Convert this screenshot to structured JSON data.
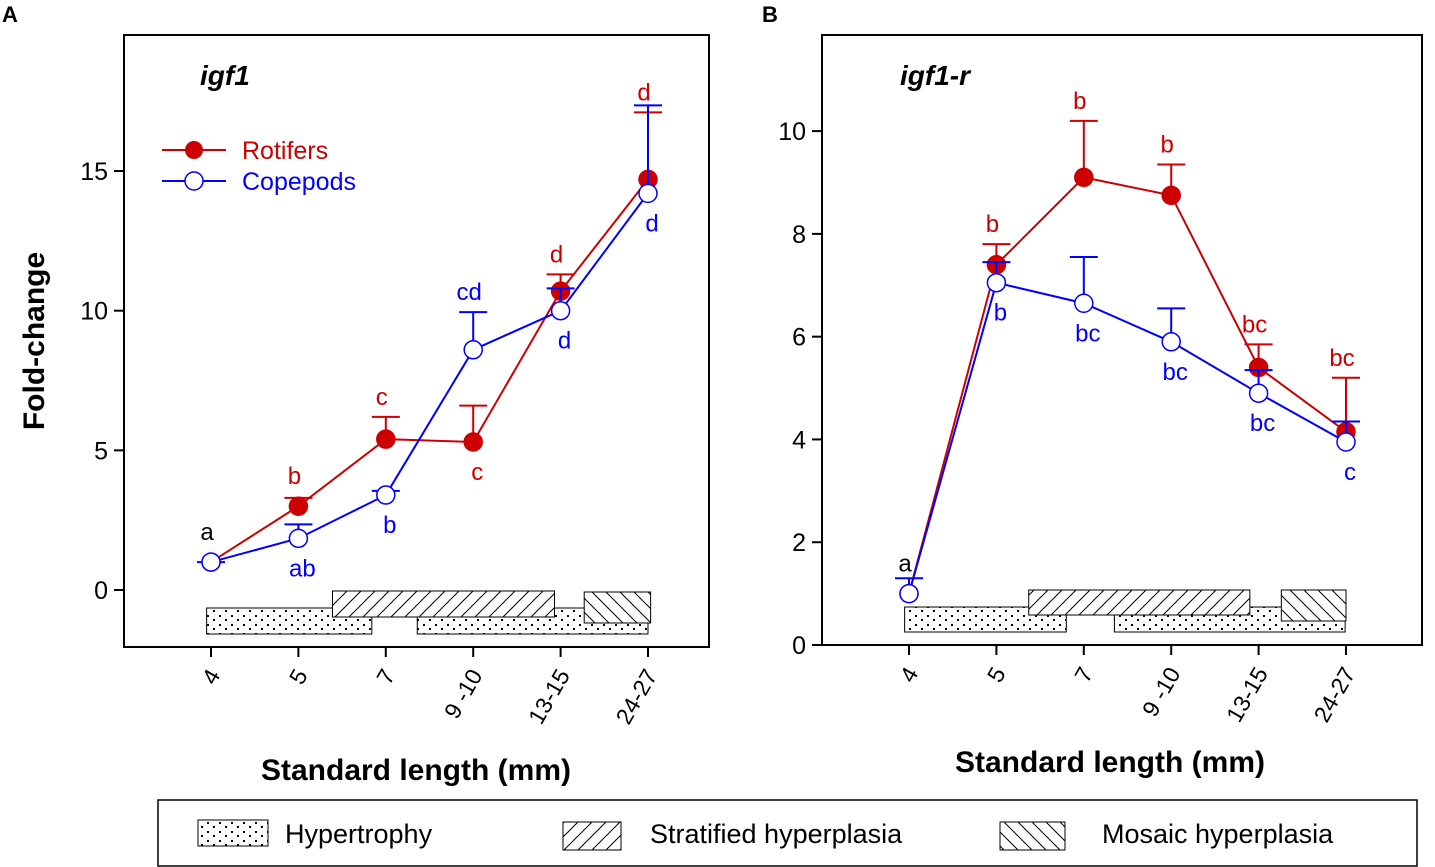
{
  "colors": {
    "rotifers": "#cc0000",
    "copepods": "#0000ff",
    "axis": "#000000"
  },
  "legend_bottom": {
    "hypertrophy": "Hypertrophy",
    "stratified": "Stratified hyperplasia",
    "mosaic": "Mosaic hyperplasia"
  },
  "chart_data": [
    {
      "type": "line",
      "panel_label": "A",
      "title": "igf1",
      "ylabel": "Fold-change",
      "xlabel": "Standard length (mm)",
      "categories": [
        "4",
        "5",
        "7",
        "9 -10",
        "13-15",
        "24-27"
      ],
      "yticks": [
        0,
        5,
        10,
        15
      ],
      "ylim": [
        -2.04,
        19.87
      ],
      "legend": {
        "placement": "top-left",
        "rotifers": "Rotifers",
        "copepods": "Copepods"
      },
      "series": [
        {
          "name": "Rotifers",
          "values": [
            1.0,
            3.0,
            5.4,
            5.3,
            10.7,
            14.7
          ],
          "err_top": [
            null,
            3.3,
            6.2,
            6.6,
            11.3,
            17.1
          ],
          "letters": [
            "a",
            "b",
            "c",
            "c",
            "d",
            "d"
          ],
          "letter_pos": [
            "above",
            "above",
            "above",
            "below",
            "above",
            "above"
          ]
        },
        {
          "name": "Copepods",
          "values": [
            1.0,
            1.85,
            3.4,
            8.6,
            10.0,
            14.2
          ],
          "err_top": [
            1.0,
            2.35,
            3.55,
            9.95,
            10.8,
            17.35
          ],
          "letters": [
            "",
            "ab",
            "b",
            "cd",
            "d",
            "d"
          ],
          "letter_pos": [
            "",
            "below",
            "below",
            "above",
            "below",
            "below"
          ]
        }
      ],
      "phases": [
        {
          "type": "hypertrophy",
          "from": -0.05,
          "to": 1.84
        },
        {
          "type": "hypertrophy",
          "from": 2.36,
          "to": 5.0
        },
        {
          "type": "stratified",
          "from": 1.39,
          "to": 3.93
        },
        {
          "type": "mosaic",
          "from": 4.27,
          "to": 5.03
        }
      ]
    },
    {
      "type": "line",
      "panel_label": "B",
      "title": "igf1-r",
      "ylabel": "",
      "xlabel": "Standard length (mm)",
      "categories": [
        "4",
        "5",
        "7",
        "9 -10",
        "13-15",
        "24-27"
      ],
      "yticks": [
        0,
        2,
        4,
        6,
        8,
        10
      ],
      "ylim": [
        0,
        11.87
      ],
      "series": [
        {
          "name": "Rotifers",
          "values": [
            1.0,
            7.4,
            9.1,
            8.75,
            5.4,
            4.15
          ],
          "err_top": [
            null,
            7.8,
            10.2,
            9.35,
            5.85,
            5.2
          ],
          "letters": [
            "a",
            "b",
            "b",
            "b",
            "bc",
            "bc"
          ],
          "letter_pos": [
            "above",
            "above",
            "above",
            "above",
            "above",
            "above"
          ]
        },
        {
          "name": "Copepods",
          "values": [
            1.0,
            7.05,
            6.65,
            5.9,
            4.9,
            3.95
          ],
          "err_top": [
            1.3,
            7.45,
            7.55,
            6.55,
            5.35,
            4.35
          ],
          "letters": [
            "",
            "b",
            "bc",
            "bc",
            "bc",
            "c"
          ],
          "letter_pos": [
            "",
            "below",
            "below",
            "below",
            "below",
            "below"
          ]
        }
      ],
      "phases": [
        {
          "type": "hypertrophy",
          "from": -0.05,
          "to": 1.8
        },
        {
          "type": "hypertrophy",
          "from": 2.35,
          "to": 4.99
        },
        {
          "type": "stratified",
          "from": 1.37,
          "to": 3.9
        },
        {
          "type": "mosaic",
          "from": 4.26,
          "to": 5.0
        }
      ]
    }
  ]
}
